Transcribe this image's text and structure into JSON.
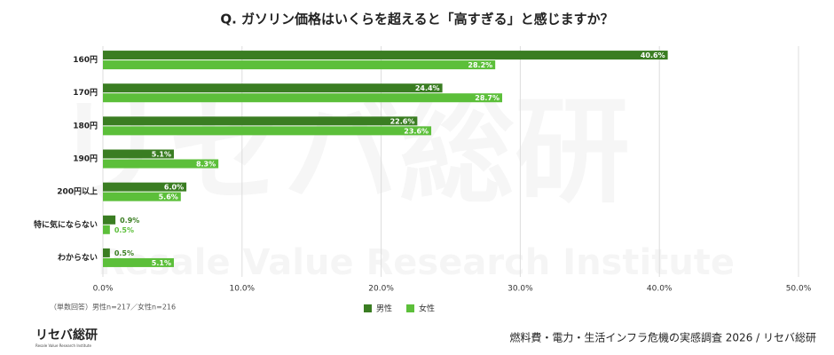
{
  "chart_data": {
    "type": "hbar",
    "title": "Q. ガソリン価格はいくらを超えると「高すぎる」と感じますか？",
    "categories": [
      "160円",
      "170円",
      "180円",
      "190円",
      "200円以上",
      "特に気にならない",
      "わからない"
    ],
    "series": [
      {
        "name": "男性",
        "color": "#3a7d22",
        "values": [
          40.6,
          24.4,
          22.6,
          5.1,
          6.0,
          0.9,
          0.5
        ],
        "value_labels": [
          "40.6%",
          "24.4%",
          "22.6%",
          "5.1%",
          "6.0%",
          "0.9%",
          "0.5%"
        ]
      },
      {
        "name": "女性",
        "color": "#5cbf3a",
        "values": [
          28.2,
          28.7,
          23.6,
          8.3,
          5.6,
          0.5,
          5.1
        ],
        "value_labels": [
          "28.2%",
          "28.7%",
          "23.6%",
          "8.3%",
          "5.6%",
          "0.5%",
          "5.1%"
        ]
      }
    ],
    "xlim": [
      0,
      50
    ],
    "xticks": [
      {
        "value": 0,
        "label": "0.0%"
      },
      {
        "value": 10,
        "label": "10.0%"
      },
      {
        "value": 20,
        "label": "20.0%"
      },
      {
        "value": 30,
        "label": "30.0%"
      },
      {
        "value": 40,
        "label": "40.0%"
      },
      {
        "value": 50,
        "label": "50.0%"
      }
    ],
    "grid": true,
    "note": "（単数回答）男性n=217／女性n=216",
    "footer": "燃料費・電力・生活インフラ危機の実感調査 2026 / リセバ総研",
    "logo": {
      "name": "リセバ総研",
      "subtitle": "Resale Value Research Institute"
    }
  }
}
